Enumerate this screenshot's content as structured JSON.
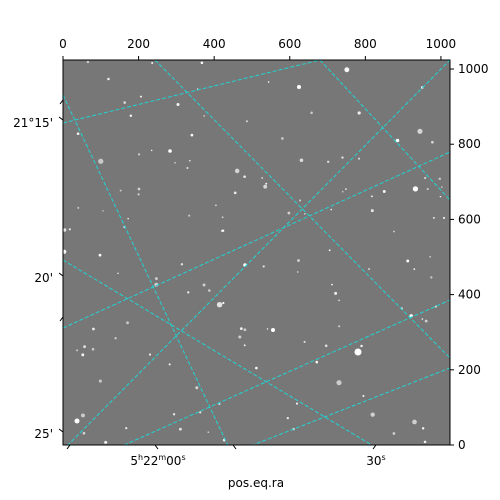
{
  "chart_data": {
    "type": "image",
    "xlabel": "pos.eq.ra",
    "ylabel": "",
    "pixel_axes": {
      "x_range": [
        0,
        1024
      ],
      "y_range": [
        0,
        1024
      ],
      "top_ticks": [
        "0",
        "200",
        "400",
        "600",
        "800",
        "1000"
      ],
      "right_ticks": [
        "0",
        "200",
        "400",
        "600",
        "800",
        "1000"
      ]
    },
    "world_axes": {
      "dec_labels": [
        "21°15'",
        "20'",
        "25'"
      ],
      "ra_labels": [
        {
          "h": "5",
          "h_unit": "h",
          "m": "22",
          "m_unit": "m",
          "s": "00",
          "s_unit": "s"
        },
        {
          "s": "30",
          "s_unit": "s"
        }
      ]
    },
    "grid": true,
    "grid_color": "#22d3d3",
    "image_background": "#777777",
    "colormap": "gray"
  }
}
